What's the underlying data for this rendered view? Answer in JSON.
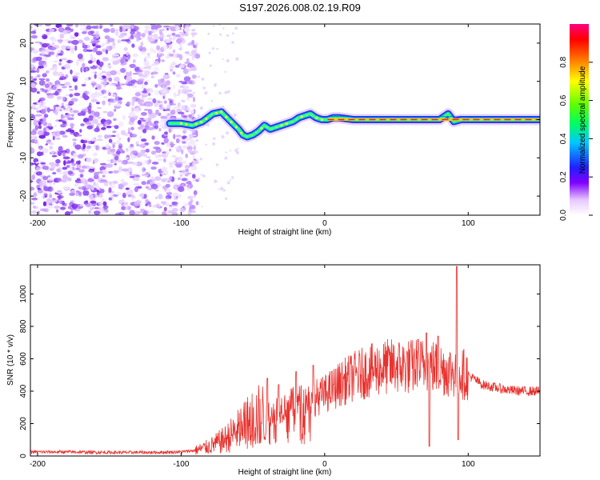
{
  "figure_title": "S197.2026.008.02.19.R09",
  "chart_data": [
    {
      "type": "heatmap",
      "name": "spectrogram",
      "xlabel": "Height of straight line (km)",
      "ylabel": "Frequency (Hz)",
      "xlim": [
        -205,
        150
      ],
      "ylim": [
        -25,
        25
      ],
      "x_ticks": [
        -200,
        -100,
        0,
        100
      ],
      "x_tick_labels": [
        "-200",
        "-100",
        "0",
        "100"
      ],
      "y_ticks": [
        -20,
        -10,
        0,
        10,
        20
      ],
      "y_tick_labels": [
        "-20",
        "-10",
        "0",
        "10",
        "20"
      ],
      "signal_track": {
        "x": [
          -108,
          -100,
          -92,
          -85,
          -78,
          -72,
          -68,
          -64,
          -60,
          -57,
          -54,
          -50,
          -46,
          -42,
          -38,
          -34,
          -30,
          -26,
          -22,
          -18,
          -14,
          -10,
          -6,
          -2,
          2,
          6,
          10,
          20,
          40,
          60,
          70,
          80,
          84,
          86,
          88,
          90,
          95,
          100,
          110,
          120,
          130,
          140,
          150
        ],
        "y": [
          -1,
          -1,
          -1.5,
          -0.5,
          1.5,
          2,
          0.5,
          -1,
          -2.5,
          -4,
          -4.5,
          -4,
          -3,
          -1.5,
          -2.5,
          -2,
          -1.5,
          -1,
          -0.5,
          0.5,
          1,
          1.5,
          0.5,
          0,
          0,
          0.5,
          0.5,
          0,
          0,
          0,
          0,
          0,
          1,
          1.5,
          0.5,
          -0.5,
          0,
          0,
          0,
          0,
          0,
          0,
          0
        ]
      },
      "noise_region_end_km": -92,
      "colorbar": {
        "label": "Normalized spectral amplitude",
        "range": [
          0,
          1
        ],
        "ticks": [
          0.0,
          0.2,
          0.4,
          0.6,
          0.8
        ],
        "tick_labels": [
          "0.0",
          "0.2",
          "0.4",
          "0.6",
          "0.8"
        ]
      }
    },
    {
      "type": "line",
      "name": "snr",
      "xlabel": "Height of straight line (km)",
      "ylabel": "SNR (10 * v/v)",
      "xlim": [
        -205,
        150
      ],
      "ylim": [
        0,
        1180
      ],
      "x_ticks": [
        -200,
        -100,
        0,
        100
      ],
      "x_tick_labels": [
        "-200",
        "-100",
        "0",
        "100"
      ],
      "y_ticks": [
        0,
        200,
        400,
        600,
        800,
        1000
      ],
      "y_tick_labels": [
        "0",
        "200",
        "400",
        "600",
        "800",
        "1000"
      ],
      "series": [
        {
          "name": "SNR",
          "color": "#e8322e",
          "envelope_x": [
            -205,
            -180,
            -150,
            -120,
            -100,
            -90,
            -80,
            -70,
            -60,
            -50,
            -40,
            -30,
            -20,
            -10,
            0,
            10,
            20,
            30,
            40,
            50,
            60,
            70,
            80,
            90,
            100,
            110,
            120,
            130,
            140,
            150
          ],
          "envelope_y": [
            25,
            25,
            22,
            22,
            25,
            35,
            60,
            100,
            160,
            230,
            260,
            300,
            330,
            350,
            380,
            440,
            490,
            520,
            545,
            555,
            550,
            560,
            540,
            520,
            500,
            440,
            420,
            405,
            400,
            400
          ],
          "spikes": [
            {
              "x": -40,
              "y": 480
            },
            {
              "x": -32,
              "y": 440
            },
            {
              "x": -20,
              "y": 520
            },
            {
              "x": -8,
              "y": 560
            },
            {
              "x": 65,
              "y": 720
            },
            {
              "x": 71,
              "y": 760
            },
            {
              "x": 73,
              "y": 60
            },
            {
              "x": 79,
              "y": 740
            },
            {
              "x": 92,
              "y": 1170
            },
            {
              "x": 93,
              "y": 100
            }
          ]
        }
      ]
    }
  ]
}
